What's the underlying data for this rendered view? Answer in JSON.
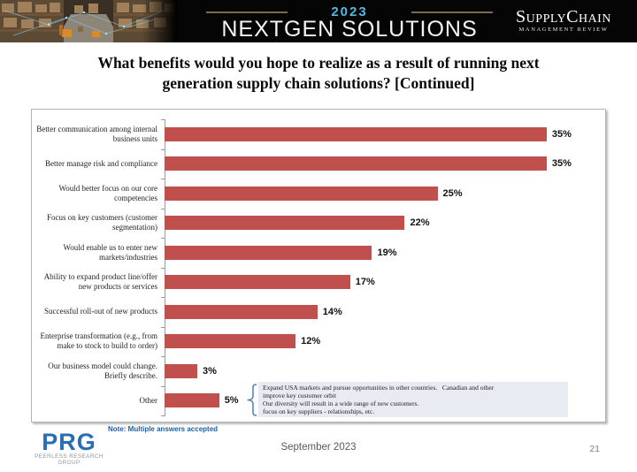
{
  "header": {
    "year": "2023",
    "brand": "NEXTGEN SOLUTIONS",
    "magazine_name": "SupplyChain",
    "magazine_tagline": "MANAGEMENT REVIEW"
  },
  "title": "What benefits would you hope to realize as a result of running next\ngeneration supply chain solutions? [Continued]",
  "chart_data": {
    "type": "bar",
    "orientation": "horizontal",
    "categories": [
      "Better communication among internal business units",
      "Better manage risk and compliance",
      "Would better focus on our core competencies",
      "Focus on key customers (customer segmentation)",
      "Would enable us to enter new markets/industries",
      "Ability to expand product line/offer new products or services",
      "Successful roll-out of new products",
      "Enterprise transformation (e.g., from make to stock to build to order)",
      "Our business model could change. Briefly describe.",
      "Other"
    ],
    "values": [
      35,
      35,
      25,
      22,
      19,
      17,
      14,
      12,
      3,
      5
    ],
    "value_labels": [
      "35%",
      "35%",
      "25%",
      "22%",
      "19%",
      "17%",
      "14%",
      "12%",
      "3%",
      "5%"
    ],
    "bar_color": "#C0504D",
    "xlim": [
      0,
      40
    ],
    "grid": false,
    "legend": "none",
    "annotation": {
      "target": "Other",
      "lines": [
        "Expand USA markets and pursue opportunities in other countries.   Canadian and other",
        "improve key customer orbit",
        "Our diversity will result in a wide range of new customers.",
        "focus on key suppliers - relationships, etc."
      ]
    }
  },
  "note": "Note: Multiple answers accepted",
  "footer": {
    "logo_text": "PRG",
    "logo_tagline": "PEERLESS RESEARCH GROUP",
    "date": "September 2023",
    "page_number": "21"
  },
  "colors": {
    "bar": "#C0504D",
    "note_blue": "#1F5FA8",
    "logo_blue": "#2a6db5",
    "year_blue": "#56b7e4",
    "annotation_bg": "#E9EBF3"
  }
}
